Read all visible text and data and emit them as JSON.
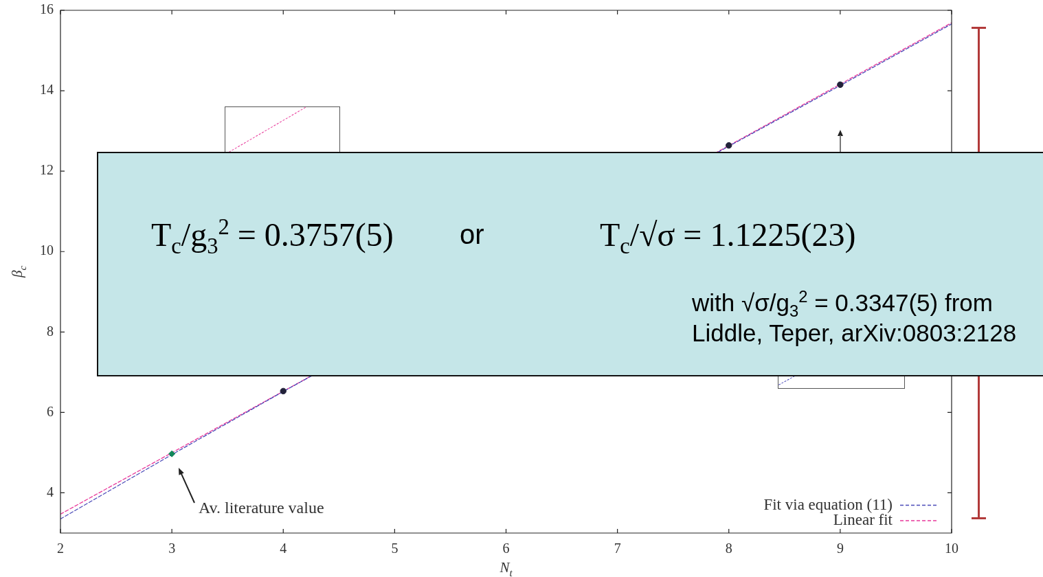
{
  "chart_data": {
    "type": "scatter",
    "xlabel": "N$_{t}$",
    "ylabel": "β$_{c}$",
    "xlim": [
      2,
      10
    ],
    "ylim": [
      3,
      16
    ],
    "xticks": [
      2,
      3,
      4,
      5,
      6,
      7,
      8,
      9,
      10
    ],
    "yticks": [
      4,
      6,
      8,
      10,
      12,
      14,
      16
    ],
    "legend": "bottom right",
    "series": [
      {
        "type": "scatter",
        "color": "#22223a",
        "marker": "circle",
        "x": [
          4,
          8,
          9
        ],
        "values": [
          6.53,
          12.64,
          14.15
        ]
      },
      {
        "type": "scatter",
        "color": "#12875a",
        "marker": "diamond",
        "x": [
          3
        ],
        "values": [
          4.97
        ]
      },
      {
        "name": "Fit via equation (11)",
        "type": "line",
        "color": "#4a4ab8",
        "line_style": "dashed",
        "marker": "none",
        "x": [
          2,
          3,
          4,
          8,
          9,
          10
        ],
        "values": [
          3.35,
          4.95,
          6.52,
          12.62,
          14.13,
          15.66
        ]
      },
      {
        "name": "Linear fit",
        "type": "line",
        "color": "#e8389a",
        "line_style": "dashed",
        "marker": "none",
        "x": [
          2,
          10
        ],
        "values": [
          3.47,
          15.69
        ]
      }
    ],
    "annotations": [
      "Av. literature value",
      "T$_{c}$/g$_{3}$$^{2}$ = 0.3757(5)",
      "or",
      "T$_{c}$/√σ = 1.1225(23)",
      "with √σ/g$_{3}$$^{2}$ = 0.3347(5) from Liddle, Teper, arXiv:0803:2128"
    ]
  }
}
